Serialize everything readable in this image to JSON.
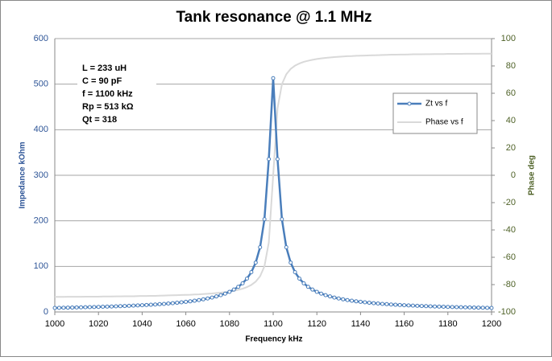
{
  "chart_data": {
    "type": "line",
    "title": "Tank resonance @ 1.1 MHz",
    "x_label": "Frequency  kHz",
    "y_label": "Impedance  kOhm",
    "y2_label": "Phase  deg",
    "annotations": [
      "L = 233  uH",
      "C = 90  pF",
      "f =  1100  kHz",
      "Rp = 513  kΩ",
      "Qt = 318"
    ],
    "x": [
      1000,
      1002,
      1004,
      1006,
      1008,
      1010,
      1012,
      1014,
      1016,
      1018,
      1020,
      1022,
      1024,
      1026,
      1028,
      1030,
      1032,
      1034,
      1036,
      1038,
      1040,
      1042,
      1044,
      1046,
      1048,
      1050,
      1052,
      1054,
      1056,
      1058,
      1060,
      1062,
      1064,
      1066,
      1068,
      1070,
      1072,
      1074,
      1076,
      1078,
      1080,
      1082,
      1084,
      1086,
      1088,
      1090,
      1092,
      1094,
      1096,
      1098,
      1100,
      1102,
      1104,
      1106,
      1108,
      1110,
      1112,
      1114,
      1116,
      1118,
      1120,
      1122,
      1124,
      1126,
      1128,
      1130,
      1132,
      1134,
      1136,
      1138,
      1140,
      1142,
      1144,
      1146,
      1148,
      1150,
      1152,
      1154,
      1156,
      1158,
      1160,
      1162,
      1164,
      1166,
      1168,
      1170,
      1172,
      1174,
      1176,
      1178,
      1180,
      1182,
      1184,
      1186,
      1188,
      1190,
      1192,
      1194,
      1196,
      1198,
      1200
    ],
    "series": [
      {
        "name": "Zt vs f",
        "color": "#4a7ebb",
        "markers": true,
        "values": [
          8.9,
          9.1,
          9.2,
          9.4,
          9.6,
          9.9,
          10.1,
          10.3,
          10.6,
          10.8,
          11.1,
          11.4,
          11.7,
          12.0,
          12.3,
          12.7,
          13.0,
          13.4,
          13.9,
          14.3,
          14.8,
          15.3,
          15.8,
          16.4,
          17.1,
          17.7,
          18.5,
          19.3,
          20.2,
          21.1,
          22.2,
          23.3,
          24.6,
          26.1,
          27.7,
          29.5,
          31.6,
          34.1,
          36.9,
          40.2,
          44.2,
          49.1,
          55.1,
          62.9,
          73.2,
          87.4,
          108.4,
          142.1,
          203.6,
          335.5,
          513,
          335.5,
          203.6,
          142.1,
          108.4,
          87.4,
          73.2,
          62.9,
          55.1,
          49.1,
          44.2,
          40.2,
          36.9,
          34.1,
          31.6,
          29.5,
          27.7,
          26.1,
          24.6,
          23.3,
          22.2,
          21.1,
          20.2,
          19.3,
          18.5,
          17.7,
          17.1,
          16.4,
          15.8,
          15.3,
          14.8,
          14.3,
          13.9,
          13.4,
          13.0,
          12.7,
          12.3,
          12.0,
          11.7,
          11.4,
          11.1,
          10.8,
          10.6,
          10.3,
          10.1,
          9.9,
          9.6,
          9.4,
          9.2,
          9.1,
          8.9
        ]
      },
      {
        "name": "Phase vs f",
        "color": "#d9d9d9",
        "markers": false,
        "axis": "y2",
        "values": [
          -89,
          -89,
          -89,
          -88.9,
          -88.9,
          -88.9,
          -88.9,
          -88.8,
          -88.8,
          -88.8,
          -88.8,
          -88.7,
          -88.7,
          -88.7,
          -88.6,
          -88.6,
          -88.5,
          -88.5,
          -88.5,
          -88.4,
          -88.3,
          -88.3,
          -88.2,
          -88.2,
          -88.1,
          -88,
          -87.9,
          -87.8,
          -87.7,
          -87.6,
          -87.5,
          -87.4,
          -87.2,
          -87.1,
          -86.9,
          -86.7,
          -86.5,
          -86.2,
          -85.9,
          -85.5,
          -85.1,
          -84.5,
          -83.8,
          -83,
          -81.8,
          -80.2,
          -77.8,
          -73.9,
          -66.6,
          -49.1,
          0,
          49.1,
          66.6,
          73.9,
          77.8,
          80.2,
          81.8,
          83,
          83.8,
          84.5,
          85.1,
          85.5,
          85.9,
          86.2,
          86.5,
          86.7,
          86.9,
          87.1,
          87.2,
          87.4,
          87.5,
          87.6,
          87.7,
          87.8,
          87.9,
          88,
          88.1,
          88.2,
          88.2,
          88.3,
          88.3,
          88.4,
          88.5,
          88.5,
          88.5,
          88.6,
          88.6,
          88.7,
          88.7,
          88.7,
          88.8,
          88.8,
          88.8,
          88.8,
          88.9,
          88.9,
          88.9,
          88.9,
          89,
          89,
          89
        ]
      }
    ],
    "xlim": [
      1000,
      1200
    ],
    "xticks": [
      1000,
      1020,
      1040,
      1060,
      1080,
      1100,
      1120,
      1140,
      1160,
      1180,
      1200
    ],
    "ylim": [
      0,
      600
    ],
    "yticks": [
      0,
      100,
      200,
      300,
      400,
      500,
      600
    ],
    "y2lim": [
      -100,
      100
    ],
    "y2ticks": [
      -100,
      -80,
      -60,
      -40,
      -20,
      0,
      20,
      40,
      60,
      80,
      100
    ],
    "grid": true,
    "legend": "right"
  }
}
